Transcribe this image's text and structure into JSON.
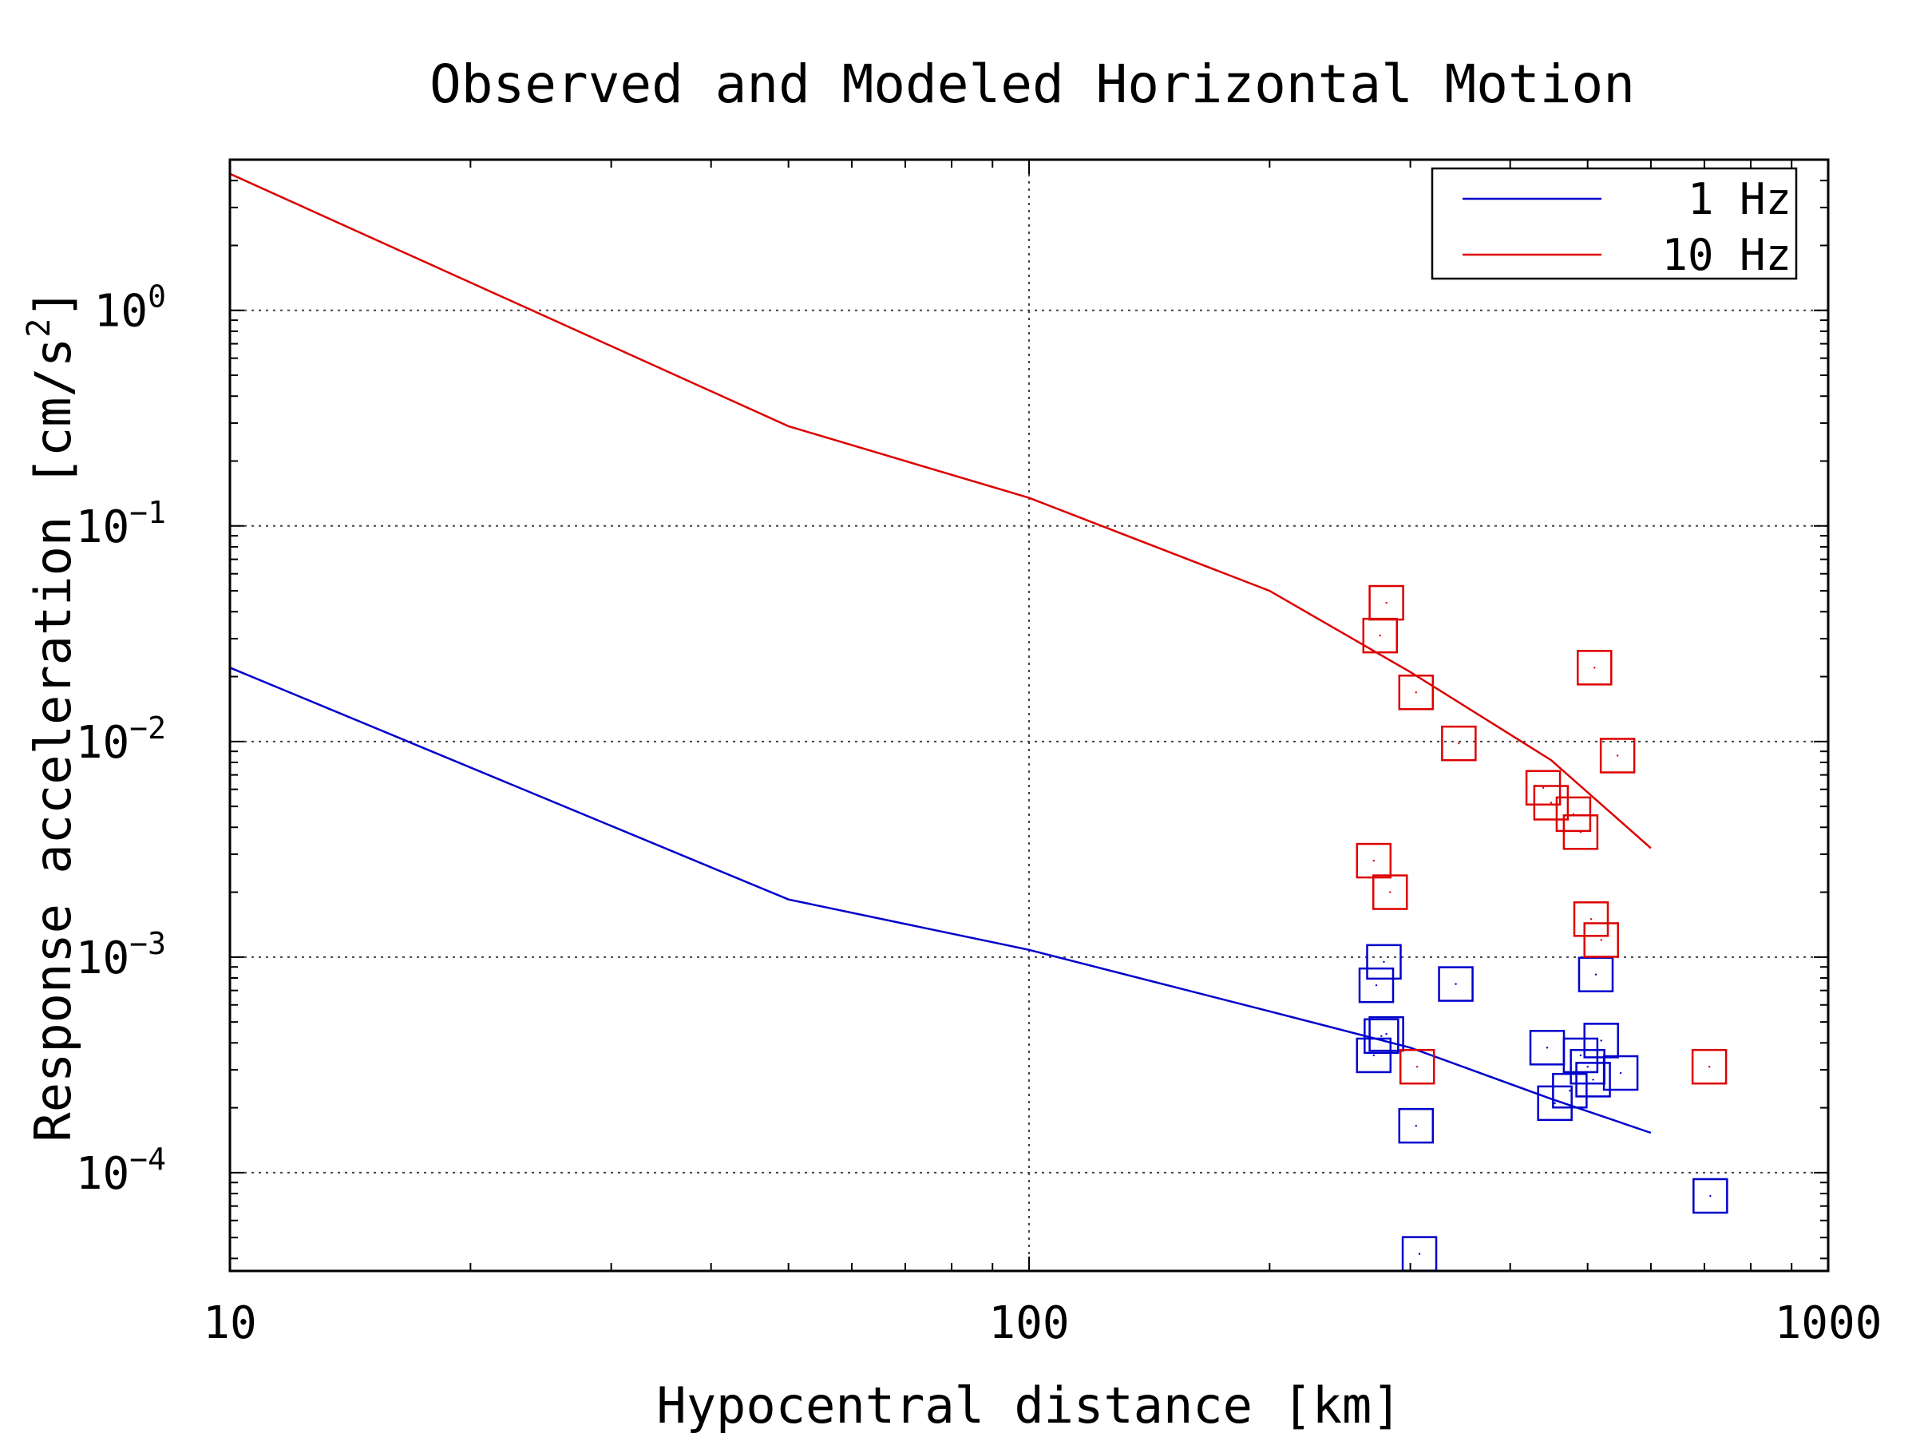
{
  "chart_data": {
    "type": "scatter",
    "title": "Observed and Modeled Horizontal Motion",
    "xlabel": "Hypocentral distance [km]",
    "ylabel": "Response acceleration [cm/s",
    "ylabel_sup": "2",
    "ylabel_end": "]",
    "x_scale": "log",
    "y_scale": "log",
    "xlim": [
      10,
      1000
    ],
    "ylim": [
      3.5e-05,
      5.0
    ],
    "grid": true,
    "legend_position": "top-right",
    "x_ticks": [
      {
        "value": 10,
        "label": "10"
      },
      {
        "value": 100,
        "label": "100"
      },
      {
        "value": 1000,
        "label": "1000"
      }
    ],
    "y_ticks": [
      {
        "value": 1,
        "base": "10",
        "exp": "0"
      },
      {
        "value": 0.1,
        "base": "10",
        "exp": "−1"
      },
      {
        "value": 0.01,
        "base": "10",
        "exp": "−2"
      },
      {
        "value": 0.001,
        "base": "10",
        "exp": "−3"
      },
      {
        "value": 0.0001,
        "base": "10",
        "exp": "−4"
      }
    ],
    "series": [
      {
        "name": "1 Hz",
        "color": "#0000cc",
        "line": {
          "x": [
            10,
            50,
            100,
            200,
            300,
            450,
            600
          ],
          "y": [
            0.022,
            0.00185,
            0.00108,
            0.00056,
            0.00038,
            0.00022,
            0.000153
          ]
        },
        "points": {
          "x": [
            270,
            272,
            276,
            278,
            280,
            305,
            308,
            342,
            445,
            455,
            475,
            490,
            500,
            508,
            512,
            520,
            550,
            712
          ],
          "y": [
            0.00035,
            0.00074,
            0.00043,
            0.00095,
            0.00044,
            0.000165,
            4.2e-05,
            0.00075,
            0.00038,
            0.00021,
            0.00024,
            0.00035,
            0.00031,
            0.00027,
            0.00083,
            0.00041,
            0.00029,
            7.8e-05
          ]
        }
      },
      {
        "name": "10 Hz",
        "color": "#dd0000",
        "line": {
          "x": [
            10,
            50,
            100,
            200,
            300,
            450,
            600
          ],
          "y": [
            4.3,
            0.29,
            0.135,
            0.05,
            0.021,
            0.0082,
            0.0032
          ]
        },
        "points": {
          "x": [
            270,
            275,
            280,
            283,
            305,
            306,
            345,
            440,
            450,
            480,
            490,
            505,
            510,
            520,
            545,
            710
          ],
          "y": [
            0.0028,
            0.031,
            0.044,
            0.002,
            0.0169,
            0.00031,
            0.0098,
            0.0061,
            0.0052,
            0.0046,
            0.0038,
            0.0015,
            0.022,
            0.0012,
            0.0086,
            0.00031
          ]
        }
      }
    ]
  }
}
